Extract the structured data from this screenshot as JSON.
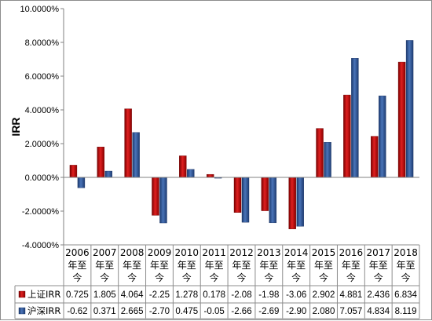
{
  "chart_data": {
    "type": "bar",
    "ylabel": "IRR",
    "ylim": [
      -4,
      10
    ],
    "y_step": 2,
    "y_tick_labels": [
      "-4.0000%",
      "-2.0000%",
      "0.0000%",
      "2.0000%",
      "4.0000%",
      "6.0000%",
      "8.0000%",
      "10.0000%"
    ],
    "categories": [
      [
        "2006",
        "年至",
        "今"
      ],
      [
        "2007",
        "年至",
        "今"
      ],
      [
        "2008",
        "年至",
        "今"
      ],
      [
        "2009",
        "年至",
        "今"
      ],
      [
        "2010",
        "年至",
        "今"
      ],
      [
        "2011",
        "年至",
        "今"
      ],
      [
        "2012",
        "年至",
        "今"
      ],
      [
        "2013",
        "年至",
        "今"
      ],
      [
        "2014",
        "年至",
        "今"
      ],
      [
        "2015",
        "年至",
        "今"
      ],
      [
        "2016",
        "年至",
        "今"
      ],
      [
        "2017",
        "年至",
        "今"
      ],
      [
        "2018",
        "年至",
        "今"
      ]
    ],
    "series": [
      {
        "name": "上证IRR",
        "color": "#C00000",
        "values": [
          0.725,
          1.805,
          4.064,
          -2.25,
          1.278,
          0.178,
          -2.08,
          -1.98,
          -3.06,
          2.902,
          4.881,
          2.436,
          6.834
        ],
        "labels": [
          "0.725",
          "1.805",
          "4.064",
          "-2.25",
          "1.278",
          "0.178",
          "-2.08",
          "-1.98",
          "-3.06",
          "2.902",
          "4.881",
          "2.436",
          "6.834"
        ]
      },
      {
        "name": "沪深IRR",
        "color": "#2F5597",
        "values": [
          -0.62,
          0.371,
          2.665,
          -2.7,
          0.475,
          -0.05,
          -2.66,
          -2.69,
          -2.9,
          2.08,
          7.057,
          4.834,
          8.119
        ],
        "labels": [
          "-0.62",
          "0.371",
          "2.665",
          "-2.70",
          "0.475",
          "-0.05",
          "-2.66",
          "-2.69",
          "-2.90",
          "2.080",
          "7.057",
          "4.834",
          "8.119"
        ]
      }
    ],
    "grid": false,
    "legend": "data-table"
  }
}
